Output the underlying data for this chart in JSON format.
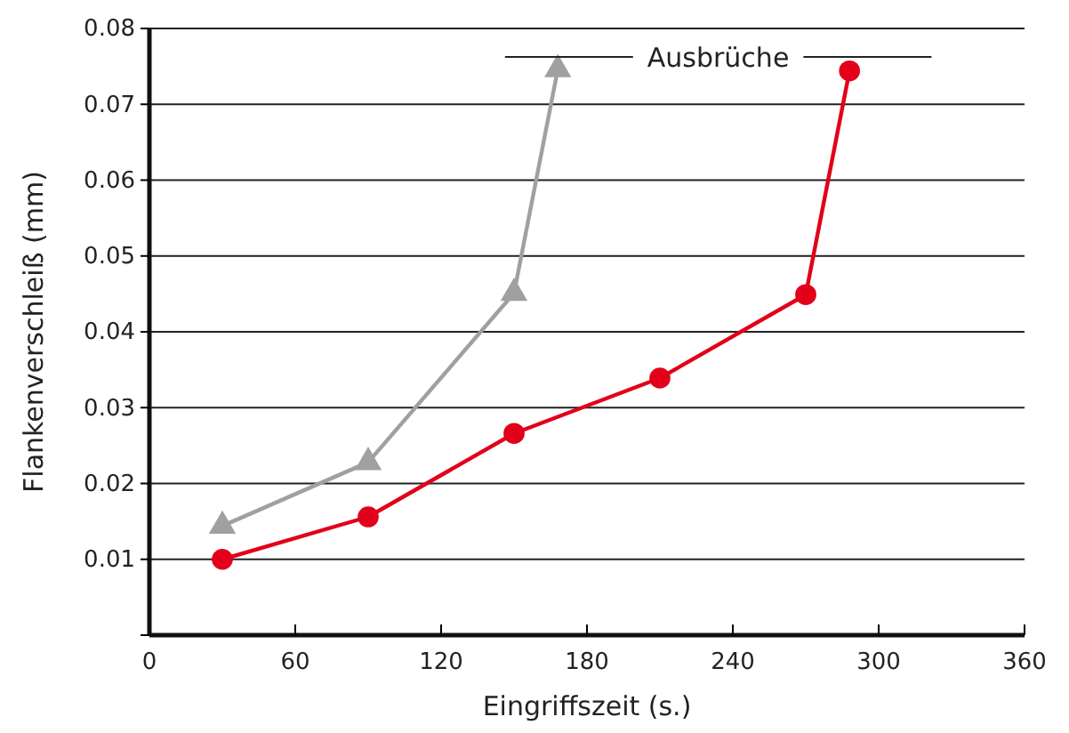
{
  "chart_data": {
    "type": "line",
    "xlabel": "Eingriffszeit (s.)",
    "ylabel": "Flankenverschleiß (mm)",
    "xlim": [
      0,
      360
    ],
    "xticks": [
      0,
      60,
      120,
      180,
      240,
      300,
      360
    ],
    "ylim": [
      0,
      0.08
    ],
    "yticks": [
      {
        "value": 0,
        "label": null
      },
      0.01,
      0.02,
      0.03,
      0.04,
      0.05,
      0.06,
      0.07,
      0.08
    ],
    "grid": "y",
    "series": [
      {
        "color": "#a0a0a0",
        "marker": "triangle",
        "x": [
          30,
          90,
          150,
          168
        ],
        "values": [
          0.0144,
          0.0228,
          0.0451,
          0.0746
        ]
      },
      {
        "color": "#e2001a",
        "marker": "circle",
        "x": [
          30,
          90,
          150,
          210,
          270,
          288
        ],
        "values": [
          0.01,
          0.0156,
          0.0266,
          0.0339,
          0.0449,
          0.0744
        ]
      }
    ],
    "annotations": [
      "Ausbrüche"
    ]
  }
}
